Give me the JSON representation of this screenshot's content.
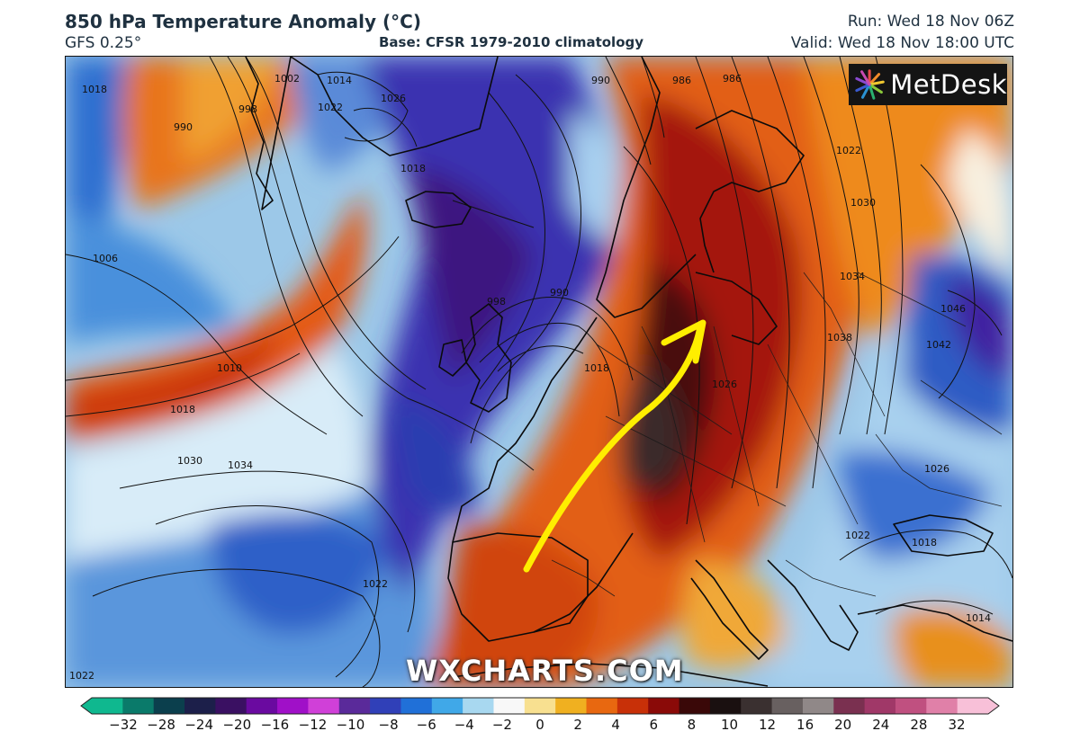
{
  "header": {
    "title": "850 hPa Temperature Anomaly (°C)",
    "model": "GFS 0.25°",
    "base": "Base: CFSR 1979-2010 climatology",
    "run": "Run: Wed 18 Nov 06Z",
    "valid": "Valid: Wed 18 Nov 18:00 UTC"
  },
  "logo": {
    "text": "MetDesk",
    "icon": "starburst-logo-icon"
  },
  "watermark": "WXCHARTS.COM",
  "isobar_labels": [
    "1018",
    "990",
    "998",
    "1002",
    "1014",
    "1022",
    "1026",
    "1018",
    "1006",
    "1010",
    "1018",
    "1030",
    "1034",
    "1022",
    "1022",
    "998",
    "990",
    "1018",
    "1026",
    "1022",
    "1030",
    "1034",
    "1038",
    "1046",
    "1042",
    "1026",
    "1022",
    "1018",
    "1014",
    "990",
    "986",
    "986"
  ],
  "colorbar": {
    "ticks": [
      "−32",
      "−28",
      "−24",
      "−20",
      "−16",
      "−12",
      "−10",
      "−8",
      "−6",
      "−4",
      "−2",
      "0",
      "2",
      "4",
      "6",
      "8",
      "10",
      "12",
      "16",
      "20",
      "24",
      "28",
      "32"
    ],
    "colors": [
      "#0fb88f",
      "#0a7a6a",
      "#0b3f4d",
      "#1c1f4a",
      "#3a1062",
      "#6a0aa0",
      "#a010c8",
      "#d040d8",
      "#5a2a9a",
      "#3040b8",
      "#2070d8",
      "#40a8e8",
      "#a8d8f0",
      "#f8f8f8",
      "#f8e090",
      "#f0b020",
      "#e86810",
      "#c83008",
      "#8a0a08",
      "#3a0808",
      "#1a1010",
      "#3a3030",
      "#686060",
      "#908888",
      "#7a3050",
      "#a03868",
      "#c05080",
      "#e080a8",
      "#f8c0d8"
    ]
  },
  "annotation": {
    "arrow_color": "#ffee00"
  }
}
